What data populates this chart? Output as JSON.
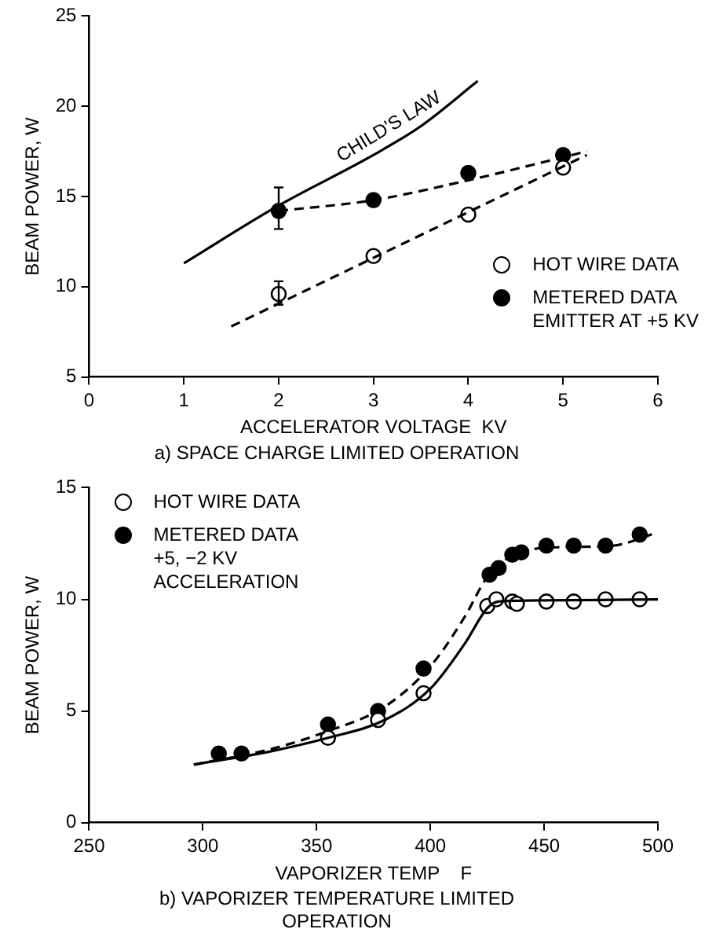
{
  "chart_data": [
    {
      "type": "scatter",
      "title": "a) SPACE CHARGE LIMITED OPERATION",
      "xlabel": "ACCELERATOR VOLTAGE  KV",
      "ylabel": "BEAM POWER, W",
      "xlim": [
        0,
        6
      ],
      "xticks": [
        0,
        1,
        2,
        3,
        4,
        5,
        6
      ],
      "ylim": [
        5,
        25
      ],
      "yticks": [
        5,
        10,
        15,
        20,
        25
      ],
      "grid": false,
      "legend": "bottom right",
      "series": [
        {
          "type": "line",
          "name": "CHILD'S LAW",
          "color": "#000000",
          "line_style": "solid",
          "marker": "none",
          "x": [
            1,
            2,
            3,
            3.5,
            4.1
          ],
          "values": [
            11.3,
            14.5,
            17.3,
            18.9,
            21.4
          ]
        },
        {
          "type": "line",
          "color": "#000000",
          "line_style": "dashed",
          "marker": "none",
          "x": [
            2,
            3,
            4,
            5.25
          ],
          "values": [
            14.2,
            14.8,
            15.9,
            17.5
          ]
        },
        {
          "type": "line",
          "color": "#000000",
          "line_style": "dashed",
          "marker": "none",
          "x": [
            1.5,
            5.25
          ],
          "values": [
            7.8,
            17.3
          ]
        },
        {
          "name": "HOT WIRE DATA",
          "color": "#ffffff",
          "marker": "circle",
          "x": [
            2,
            3,
            4,
            5
          ],
          "values": [
            9.6,
            11.7,
            14.0,
            16.6
          ],
          "errors": [
            [
              9.0,
              10.3
            ],
            null,
            null,
            null
          ]
        },
        {
          "name": "METERED DATA\nEMITTER AT +5 KV",
          "color": "#000000",
          "marker": "circle",
          "x": [
            2,
            3,
            4,
            5
          ],
          "values": [
            14.2,
            14.8,
            16.3,
            17.3
          ],
          "errors": [
            [
              13.2,
              15.5
            ],
            null,
            null,
            null
          ]
        }
      ]
    },
    {
      "type": "scatter",
      "title": "b) VAPORIZER TEMPERATURE LIMITED\nOPERATION",
      "xlabel": "VAPORIZER TEMP    F",
      "ylabel": "BEAM POWER, W",
      "xlim": [
        250,
        500
      ],
      "xticks": [
        250,
        300,
        350,
        400,
        450,
        500
      ],
      "ylim": [
        0,
        15
      ],
      "yticks": [
        0,
        5,
        10,
        15
      ],
      "grid": false,
      "legend": "top left",
      "series": [
        {
          "type": "line",
          "color": "#000000",
          "line_style": "solid",
          "marker": "none",
          "x": [
            296,
            330,
            355,
            380,
            400,
            415,
            425,
            430,
            450,
            500
          ],
          "values": [
            2.6,
            3.2,
            3.8,
            4.6,
            6.0,
            8.0,
            9.6,
            9.9,
            9.95,
            10.0
          ]
        },
        {
          "type": "line",
          "color": "#000000",
          "line_style": "dashed",
          "marker": "none",
          "x": [
            296,
            330,
            355,
            380,
            400,
            415,
            425,
            435,
            450,
            480,
            500
          ],
          "values": [
            2.6,
            3.3,
            4.1,
            5.2,
            7.0,
            9.2,
            11.0,
            11.9,
            12.3,
            12.4,
            13.0
          ]
        },
        {
          "name": "HOT WIRE DATA",
          "color": "#ffffff",
          "marker": "circle",
          "x": [
            355,
            377,
            397,
            425,
            429,
            436,
            438,
            451,
            463,
            477,
            492
          ],
          "values": [
            3.8,
            4.6,
            5.8,
            9.7,
            10.0,
            9.9,
            9.8,
            9.9,
            9.9,
            10.0,
            10.0
          ]
        },
        {
          "name": "METERED DATA\n+5, −2 KV\nACCELERATION",
          "color": "#000000",
          "marker": "circle",
          "x": [
            307,
            317,
            355,
            377,
            397,
            426,
            430,
            436,
            440,
            451,
            463,
            477,
            492
          ],
          "values": [
            3.1,
            3.1,
            4.4,
            5.0,
            6.9,
            11.1,
            11.4,
            12.0,
            12.1,
            12.4,
            12.4,
            12.4,
            12.9
          ]
        }
      ]
    }
  ]
}
